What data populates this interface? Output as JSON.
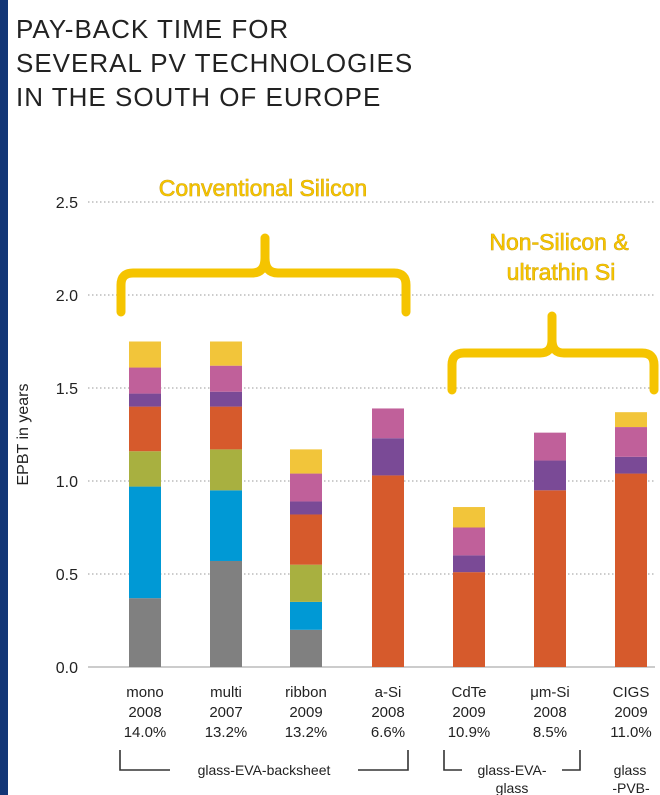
{
  "title": "PAY-BACK TIME FOR\nSEVERAL PV TECHNOLOGIES\nIN THE SOUTH OF EUROPE",
  "colors": {
    "gray": "#808080",
    "blue": "#0099d5",
    "olive": "#a8b040",
    "orange": "#d65a2c",
    "purple": "#7a4a96",
    "pink": "#c0609a",
    "gold": "#f2c53a",
    "annotation": "#f5c400"
  },
  "annotations": {
    "conventional": "Conventional Silicon",
    "non_silicon_line1": "Non-Silicon &",
    "non_silicon_line2": "ultrathin Si"
  },
  "groups": {
    "g1": "glass-EVA-backsheet",
    "g2_line1": "glass-EVA-",
    "g2_line2": "glass",
    "g3_line1": "glass",
    "g3_line2": "-PVB-"
  },
  "chart_data": {
    "type": "bar",
    "stacked": true,
    "title": "PAY-BACK TIME FOR SEVERAL PV TECHNOLOGIES IN THE SOUTH OF EUROPE",
    "xlabel": "",
    "ylabel": "EPBT in years",
    "ylim": [
      0,
      2.5
    ],
    "yticks": [
      "0.0",
      "0.5",
      "1.0",
      "1.5",
      "2.0",
      "2.5"
    ],
    "grid": true,
    "categories": [
      [
        "mono",
        "2008",
        "14.0%"
      ],
      [
        "multi",
        "2007",
        "13.2%"
      ],
      [
        "ribbon",
        "2009",
        "13.2%"
      ],
      [
        "a-Si",
        "2008",
        "6.6%"
      ],
      [
        "CdTe",
        "2009",
        "10.9%"
      ],
      [
        "μm-Si",
        "2008",
        "8.5%"
      ],
      [
        "CIGS",
        "2009",
        "11.0%"
      ]
    ],
    "series": [
      {
        "color": "gray",
        "values": [
          0.37,
          0.57,
          0.2,
          0,
          0,
          0,
          0
        ]
      },
      {
        "color": "blue",
        "values": [
          0.6,
          0.38,
          0.15,
          0,
          0,
          0,
          0
        ]
      },
      {
        "color": "olive",
        "values": [
          0.19,
          0.22,
          0.2,
          0,
          0,
          0,
          0
        ]
      },
      {
        "color": "orange",
        "values": [
          0.24,
          0.23,
          0.27,
          1.03,
          0.51,
          0.95,
          1.04
        ]
      },
      {
        "color": "purple",
        "values": [
          0.07,
          0.08,
          0.07,
          0.2,
          0.09,
          0.16,
          0.09
        ]
      },
      {
        "color": "pink",
        "values": [
          0.14,
          0.14,
          0.15,
          0.16,
          0.15,
          0.15,
          0.16
        ]
      },
      {
        "color": "gold",
        "values": [
          0.14,
          0.13,
          0.13,
          0,
          0.11,
          0,
          0.08
        ]
      }
    ]
  }
}
